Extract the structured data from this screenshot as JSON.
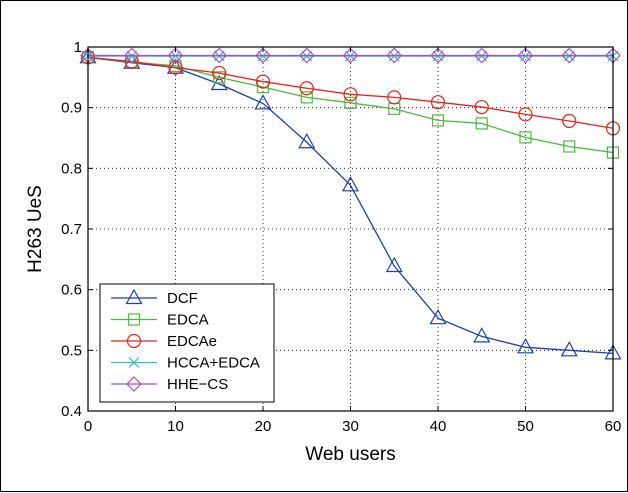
{
  "chart_data": {
    "type": "line",
    "title": "",
    "xlabel": "Web users",
    "ylabel": "H263 UeS",
    "xlim": [
      0,
      60
    ],
    "ylim": [
      0.4,
      1.0
    ],
    "x_ticks": [
      "0",
      "10",
      "20",
      "30",
      "40",
      "50",
      "60"
    ],
    "y_ticks": [
      "0.4",
      "0.5",
      "0.6",
      "0.7",
      "0.8",
      "0.9",
      "1"
    ],
    "grid": true,
    "legend_position": "bottom-left",
    "x": [
      0,
      5,
      10,
      15,
      20,
      25,
      30,
      35,
      40,
      45,
      50,
      55,
      60
    ],
    "series": [
      {
        "name": "DCF",
        "color": "#1f3fae",
        "marker": "triangle",
        "values": [
          0.983,
          0.974,
          0.966,
          0.939,
          0.907,
          0.843,
          0.772,
          0.639,
          0.553,
          0.523,
          0.505,
          0.5,
          0.495
        ]
      },
      {
        "name": "EDCA",
        "color": "#4cbb3c",
        "marker": "square",
        "values": [
          0.983,
          0.975,
          0.969,
          0.95,
          0.934,
          0.917,
          0.908,
          0.898,
          0.879,
          0.874,
          0.851,
          0.836,
          0.826
        ]
      },
      {
        "name": "EDCAe",
        "color": "#e8231b",
        "marker": "circle",
        "values": [
          0.983,
          0.976,
          0.966,
          0.957,
          0.943,
          0.932,
          0.922,
          0.917,
          0.909,
          0.901,
          0.889,
          0.878,
          0.866
        ]
      },
      {
        "name": "HCCA+EDCA",
        "color": "#2bbfd6",
        "marker": "x",
        "values": [
          0.985,
          0.985,
          0.985,
          0.985,
          0.985,
          0.985,
          0.985,
          0.985,
          0.985,
          0.985,
          0.985,
          0.985,
          0.985
        ]
      },
      {
        "name": "HHE−CS",
        "color": "#b24ac8",
        "marker": "diamond",
        "values": [
          0.986,
          0.986,
          0.986,
          0.986,
          0.986,
          0.986,
          0.986,
          0.986,
          0.986,
          0.986,
          0.986,
          0.986,
          0.986
        ]
      }
    ]
  }
}
